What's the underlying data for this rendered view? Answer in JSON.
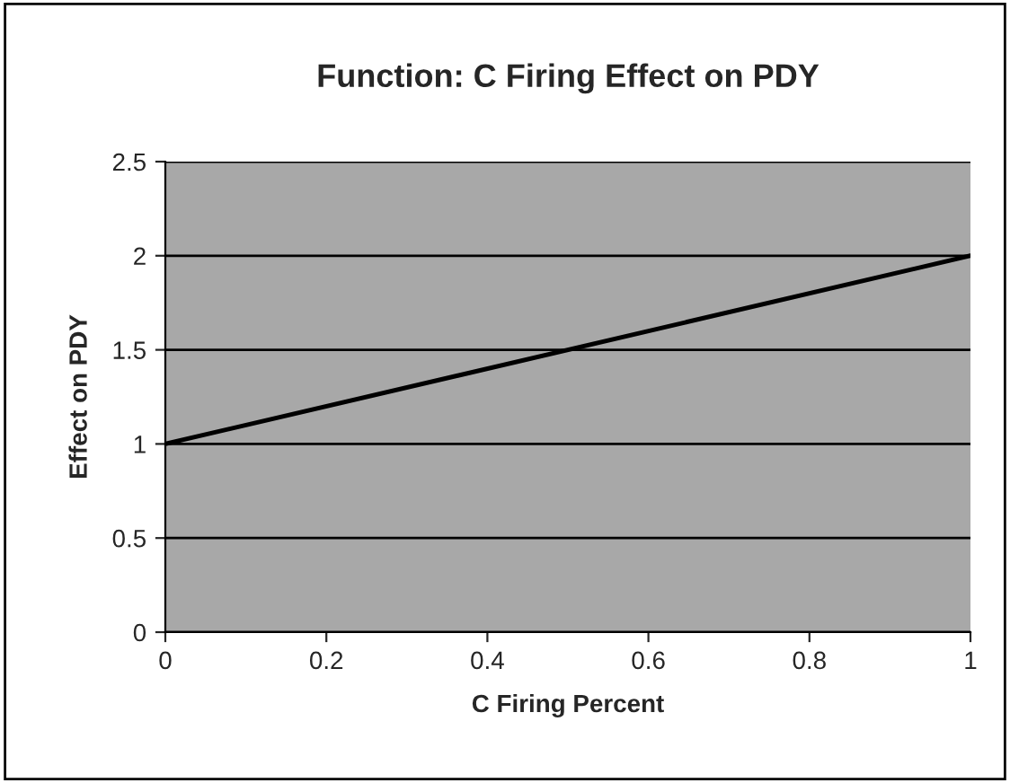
{
  "chart_data": {
    "type": "line",
    "title": "Function: C Firing Effect on PDY",
    "xlabel": "C Firing Percent",
    "ylabel": "Effect on PDY",
    "x": [
      0,
      1
    ],
    "series": [
      {
        "color": "#000000",
        "values": [
          1,
          2
        ]
      }
    ],
    "xlim": [
      0,
      1
    ],
    "xticks": [
      0,
      0.2,
      0.4,
      0.6,
      0.8,
      1
    ],
    "ylim": [
      0,
      2.5
    ],
    "yticks": [
      0,
      0.5,
      1,
      1.5,
      2,
      2.5
    ],
    "grid": "y",
    "marker": "none",
    "line_style": "solid"
  }
}
